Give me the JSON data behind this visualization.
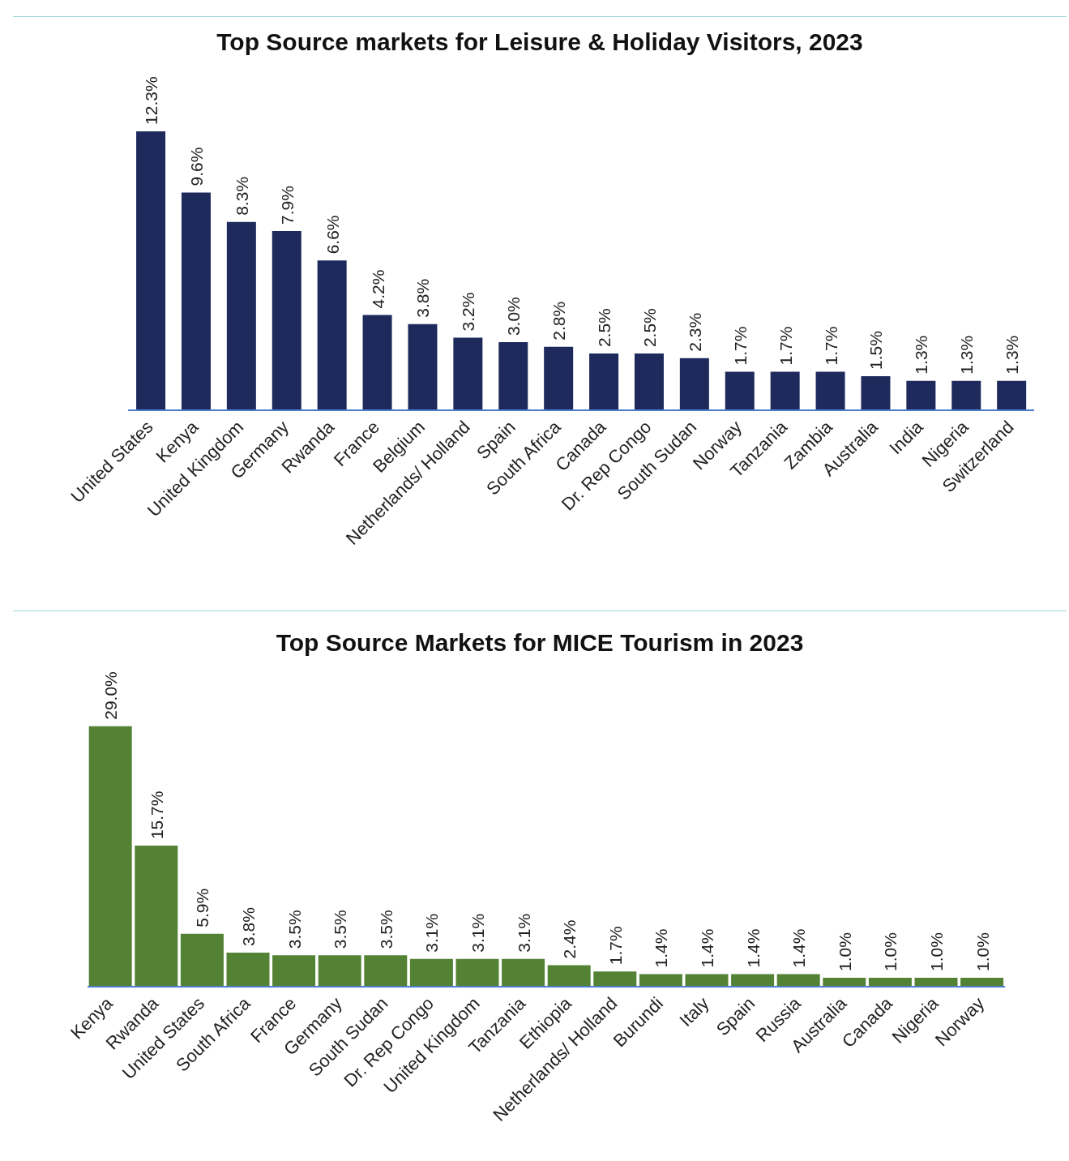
{
  "chart_data": [
    {
      "type": "bar",
      "title": "Top Source markets for Leisure & Holiday Visitors, 2023",
      "categories": [
        "United States",
        "Kenya",
        "United Kingdom",
        "Germany",
        "Rwanda",
        "France",
        "Belgium",
        "Netherlands/ Holland",
        "Spain",
        "South Africa",
        "Canada",
        "Dr. Rep Congo",
        "South Sudan",
        "Norway",
        "Tanzania",
        "Zambia",
        "Australia",
        "India",
        "Nigeria",
        "Switzerland"
      ],
      "values": [
        12.3,
        9.6,
        8.3,
        7.9,
        6.6,
        4.2,
        3.8,
        3.2,
        3.0,
        2.8,
        2.5,
        2.5,
        2.3,
        1.7,
        1.7,
        1.7,
        1.5,
        1.3,
        1.3,
        1.3
      ],
      "value_labels": [
        "12.3%",
        "9.6%",
        "8.3%",
        "7.9%",
        "6.6%",
        "4.2%",
        "3.8%",
        "3.2%",
        "3.0%",
        "2.8%",
        "2.5%",
        "2.5%",
        "2.3%",
        "1.7%",
        "1.7%",
        "1.7%",
        "1.5%",
        "1.3%",
        "1.3%",
        "1.3%"
      ],
      "color": "#1f2a5c",
      "grid": false,
      "legend": false
    },
    {
      "type": "bar",
      "title": "Top Source Markets for MICE Tourism in 2023",
      "categories": [
        "Kenya",
        "Rwanda",
        "United States",
        "South Africa",
        "France",
        "Germany",
        "South Sudan",
        "Dr. Rep Congo",
        "United Kingdom",
        "Tanzania",
        "Ethiopia",
        "Netherlands/ Holland",
        "Burundi",
        "Italy",
        "Spain",
        "Russia",
        "Australia",
        "Canada",
        "Nigeria",
        "Norway"
      ],
      "values": [
        29.0,
        15.7,
        5.9,
        3.8,
        3.5,
        3.5,
        3.5,
        3.1,
        3.1,
        3.1,
        2.4,
        1.7,
        1.4,
        1.4,
        1.4,
        1.4,
        1.0,
        1.0,
        1.0,
        1.0
      ],
      "value_labels": [
        "29.0%",
        "15.7%",
        "5.9%",
        "3.8%",
        "3.5%",
        "3.5%",
        "3.5%",
        "3.1%",
        "3.1%",
        "3.1%",
        "2.4%",
        "1.7%",
        "1.4%",
        "1.4%",
        "1.4%",
        "1.4%",
        "1.0%",
        "1.0%",
        "1.0%",
        "1.0%"
      ],
      "color": "#548235",
      "grid": false,
      "legend": false
    }
  ]
}
